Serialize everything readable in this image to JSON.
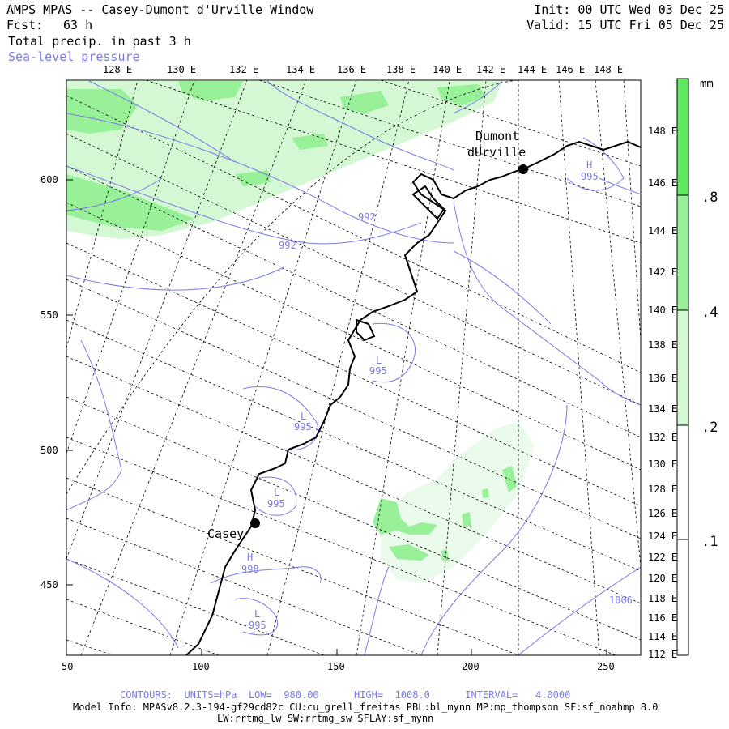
{
  "header": {
    "title": "AMPS MPAS -- Casey-Dumont d'Urville Window",
    "fcst_label": "Fcst:",
    "fcst_value": "63 h",
    "field": "Total precip. in past 3 h",
    "overlay": "Sea-level pressure",
    "init": "Init: 00 UTC Wed 03 Dec 25",
    "valid": "Valid: 15 UTC Fri 05 Dec 25"
  },
  "top_longitudes": [
    "128 E",
    "130 E",
    "132 E",
    "134 E",
    "136 E",
    "138 E",
    "140 E",
    "142 E",
    "144 E",
    "146 E",
    "148 E"
  ],
  "right_longitudes": [
    "148 E",
    "146 E",
    "144 E",
    "142 E",
    "140 E",
    "138 E",
    "136 E",
    "134 E",
    "132 E",
    "130 E",
    "128 E",
    "126 E",
    "124 E",
    "122 E",
    "120 E",
    "118 E",
    "116 E",
    "114 E",
    "112 E"
  ],
  "y_axis": [
    "600",
    "550",
    "500",
    "450"
  ],
  "x_axis": [
    "50",
    "100",
    "150",
    "200",
    "250"
  ],
  "stations": {
    "casey": "Casey",
    "dumont_line1": "Dumont",
    "dumont_line2": "dUrville"
  },
  "pressure_labels": [
    "992",
    "992",
    "995",
    "995",
    "995",
    "995",
    "998",
    "1006",
    "995"
  ],
  "pressure_centers": [
    "H",
    "L",
    "L",
    "L",
    "H",
    "L"
  ],
  "colorbar": {
    "unit": "mm",
    "levels": [
      ".8",
      ".4",
      ".2",
      ".1"
    ],
    "colors": [
      "#5ee85e",
      "#98f098",
      "#d4f8d4",
      "#ffffff"
    ]
  },
  "footer": {
    "contours": "CONTOURS:  UNITS=hPa  LOW=  980.00      HIGH=  1008.0      INTERVAL=   4.0000",
    "model_info": "Model Info: MPASv8.2.3-194-gf29cd82c CU:cu_grell_freitas PBL:bl_mynn MP:mp_thompson SF:sf_noahmp 8.0",
    "model_info2": "LW:rrtmg_lw SW:rrtmg_sw SFLAY:sf_mynn"
  }
}
